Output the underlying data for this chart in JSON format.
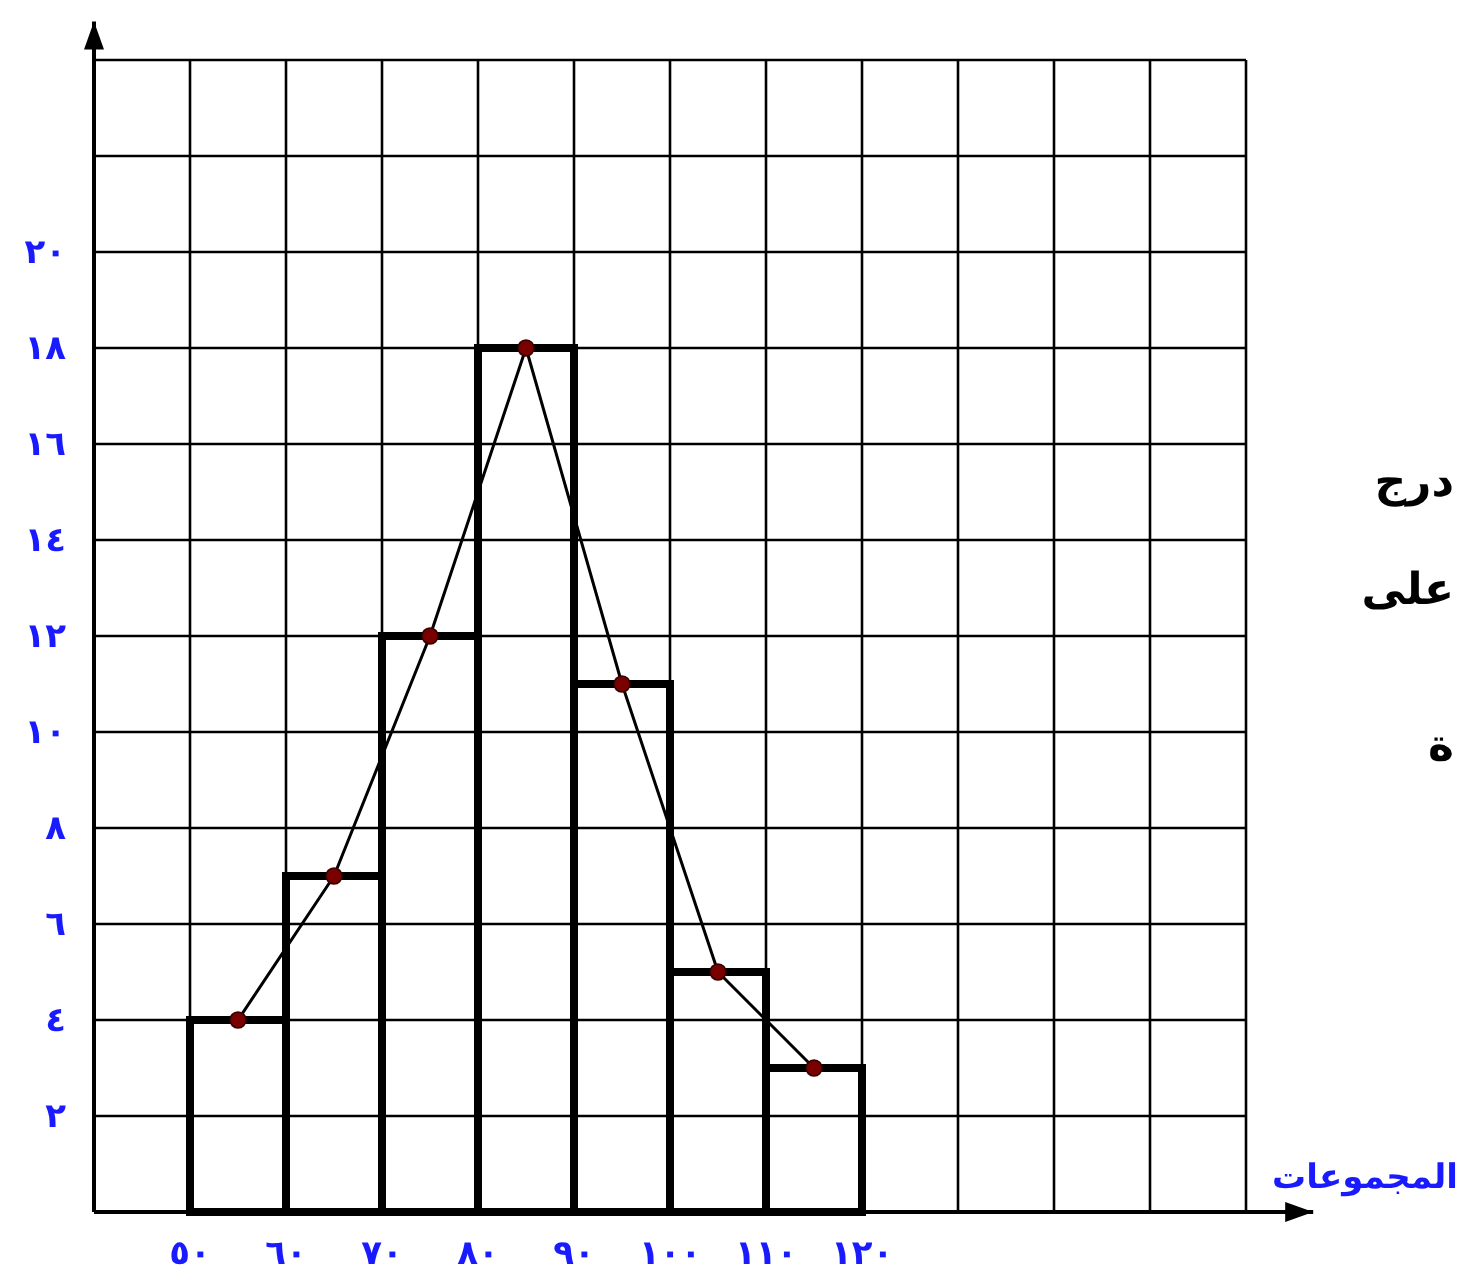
{
  "chart_data": {
    "type": "histogram",
    "bins": [
      50,
      60,
      70,
      80,
      90,
      100,
      110,
      120
    ],
    "values": [
      4,
      7,
      12,
      18,
      11,
      5,
      3
    ],
    "color": "#000000",
    "series": [
      {
        "type": "line",
        "x": [
          55,
          65,
          75,
          85,
          95,
          105,
          115
        ],
        "values": [
          4,
          7,
          12,
          18,
          11,
          5,
          3
        ],
        "color": "#7a0000",
        "marker": "circle"
      }
    ],
    "xlabel": "المجموعات",
    "xlim": [
      40,
      167
    ],
    "ylim": [
      0,
      24.8
    ],
    "xticks": [
      {
        "value": 50,
        "label": "٥٠"
      },
      {
        "value": 60,
        "label": "٦٠"
      },
      {
        "value": 70,
        "label": "٧٠"
      },
      {
        "value": 80,
        "label": "٨٠"
      },
      {
        "value": 90,
        "label": "٩٠"
      },
      {
        "value": 100,
        "label": "١٠٠"
      },
      {
        "value": 110,
        "label": "١١٠"
      },
      {
        "value": 120,
        "label": "١٢٠"
      },
      {
        "value": 130,
        "label": null
      },
      {
        "value": 140,
        "label": null
      },
      {
        "value": 150,
        "label": null
      },
      {
        "value": 160,
        "label": null
      }
    ],
    "yticks": [
      {
        "value": 2,
        "label": "٢"
      },
      {
        "value": 4,
        "label": "٤"
      },
      {
        "value": 6,
        "label": "٦"
      },
      {
        "value": 8,
        "label": "٨"
      },
      {
        "value": 10,
        "label": "١٠"
      },
      {
        "value": 12,
        "label": "١٢"
      },
      {
        "value": 14,
        "label": "١٤"
      },
      {
        "value": 16,
        "label": "١٦"
      },
      {
        "value": 18,
        "label": "١٨"
      },
      {
        "value": 20,
        "label": "٢٠"
      },
      {
        "value": 22,
        "label": null
      },
      {
        "value": 24,
        "label": null
      }
    ],
    "grid": true,
    "annotations": [
      "درج",
      "على",
      "ة"
    ]
  }
}
